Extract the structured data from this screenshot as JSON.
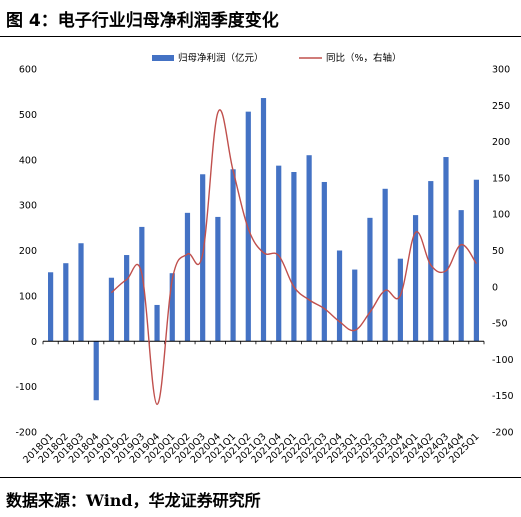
{
  "figure": {
    "title": "图 4：电子行业归母净利润季度变化",
    "source": "数据来源：Wind，华龙证券研究所"
  },
  "chart_data": {
    "type": "bar",
    "categories": [
      "2018Q1",
      "2018Q2",
      "2018Q3",
      "2018Q4",
      "2019Q1",
      "2019Q2",
      "2019Q3",
      "2019Q4",
      "2020Q1",
      "2020Q2",
      "2020Q3",
      "2020Q4",
      "2021Q1",
      "2021Q2",
      "2021Q3",
      "2021Q4",
      "2022Q1",
      "2022Q2",
      "2022Q3",
      "2022Q4",
      "2023Q1",
      "2023Q2",
      "2023Q3",
      "2023Q4",
      "2024Q1",
      "2024Q2",
      "2024Q3",
      "2024Q4",
      "2025Q1"
    ],
    "series": [
      {
        "name": "归母净利润（亿元）",
        "type": "bar",
        "axis": "left",
        "color": "#4472C4",
        "values": [
          152,
          172,
          216,
          -130,
          140,
          190,
          252,
          80,
          150,
          283,
          368,
          274,
          379,
          506,
          536,
          387,
          373,
          410,
          351,
          200,
          158,
          272,
          336,
          182,
          278,
          353,
          406,
          289,
          356
        ]
      },
      {
        "name": "同比（%，右轴）",
        "type": "line",
        "axis": "right",
        "color": "#C0504D",
        "values": [
          null,
          null,
          null,
          null,
          -8,
          10,
          18,
          -162,
          10,
          45,
          45,
          240,
          160,
          80,
          47,
          43,
          0,
          -18,
          -30,
          -48,
          -60,
          -35,
          -5,
          -12,
          75,
          30,
          22,
          58,
          32
        ]
      }
    ],
    "y_left": {
      "min": -200,
      "max": 600,
      "ticks": [
        "-200",
        "-100",
        "0",
        "100",
        "200",
        "300",
        "400",
        "500",
        "600"
      ]
    },
    "y_right": {
      "min": -200,
      "max": 300,
      "ticks": [
        "-200",
        "-150",
        "-100",
        "-50",
        "0",
        "50",
        "100",
        "150",
        "200",
        "250",
        "300"
      ]
    },
    "legend": {
      "position": "top",
      "items": [
        "归母净利润（亿元）",
        "同比（%，右轴）"
      ]
    },
    "grid": false
  }
}
